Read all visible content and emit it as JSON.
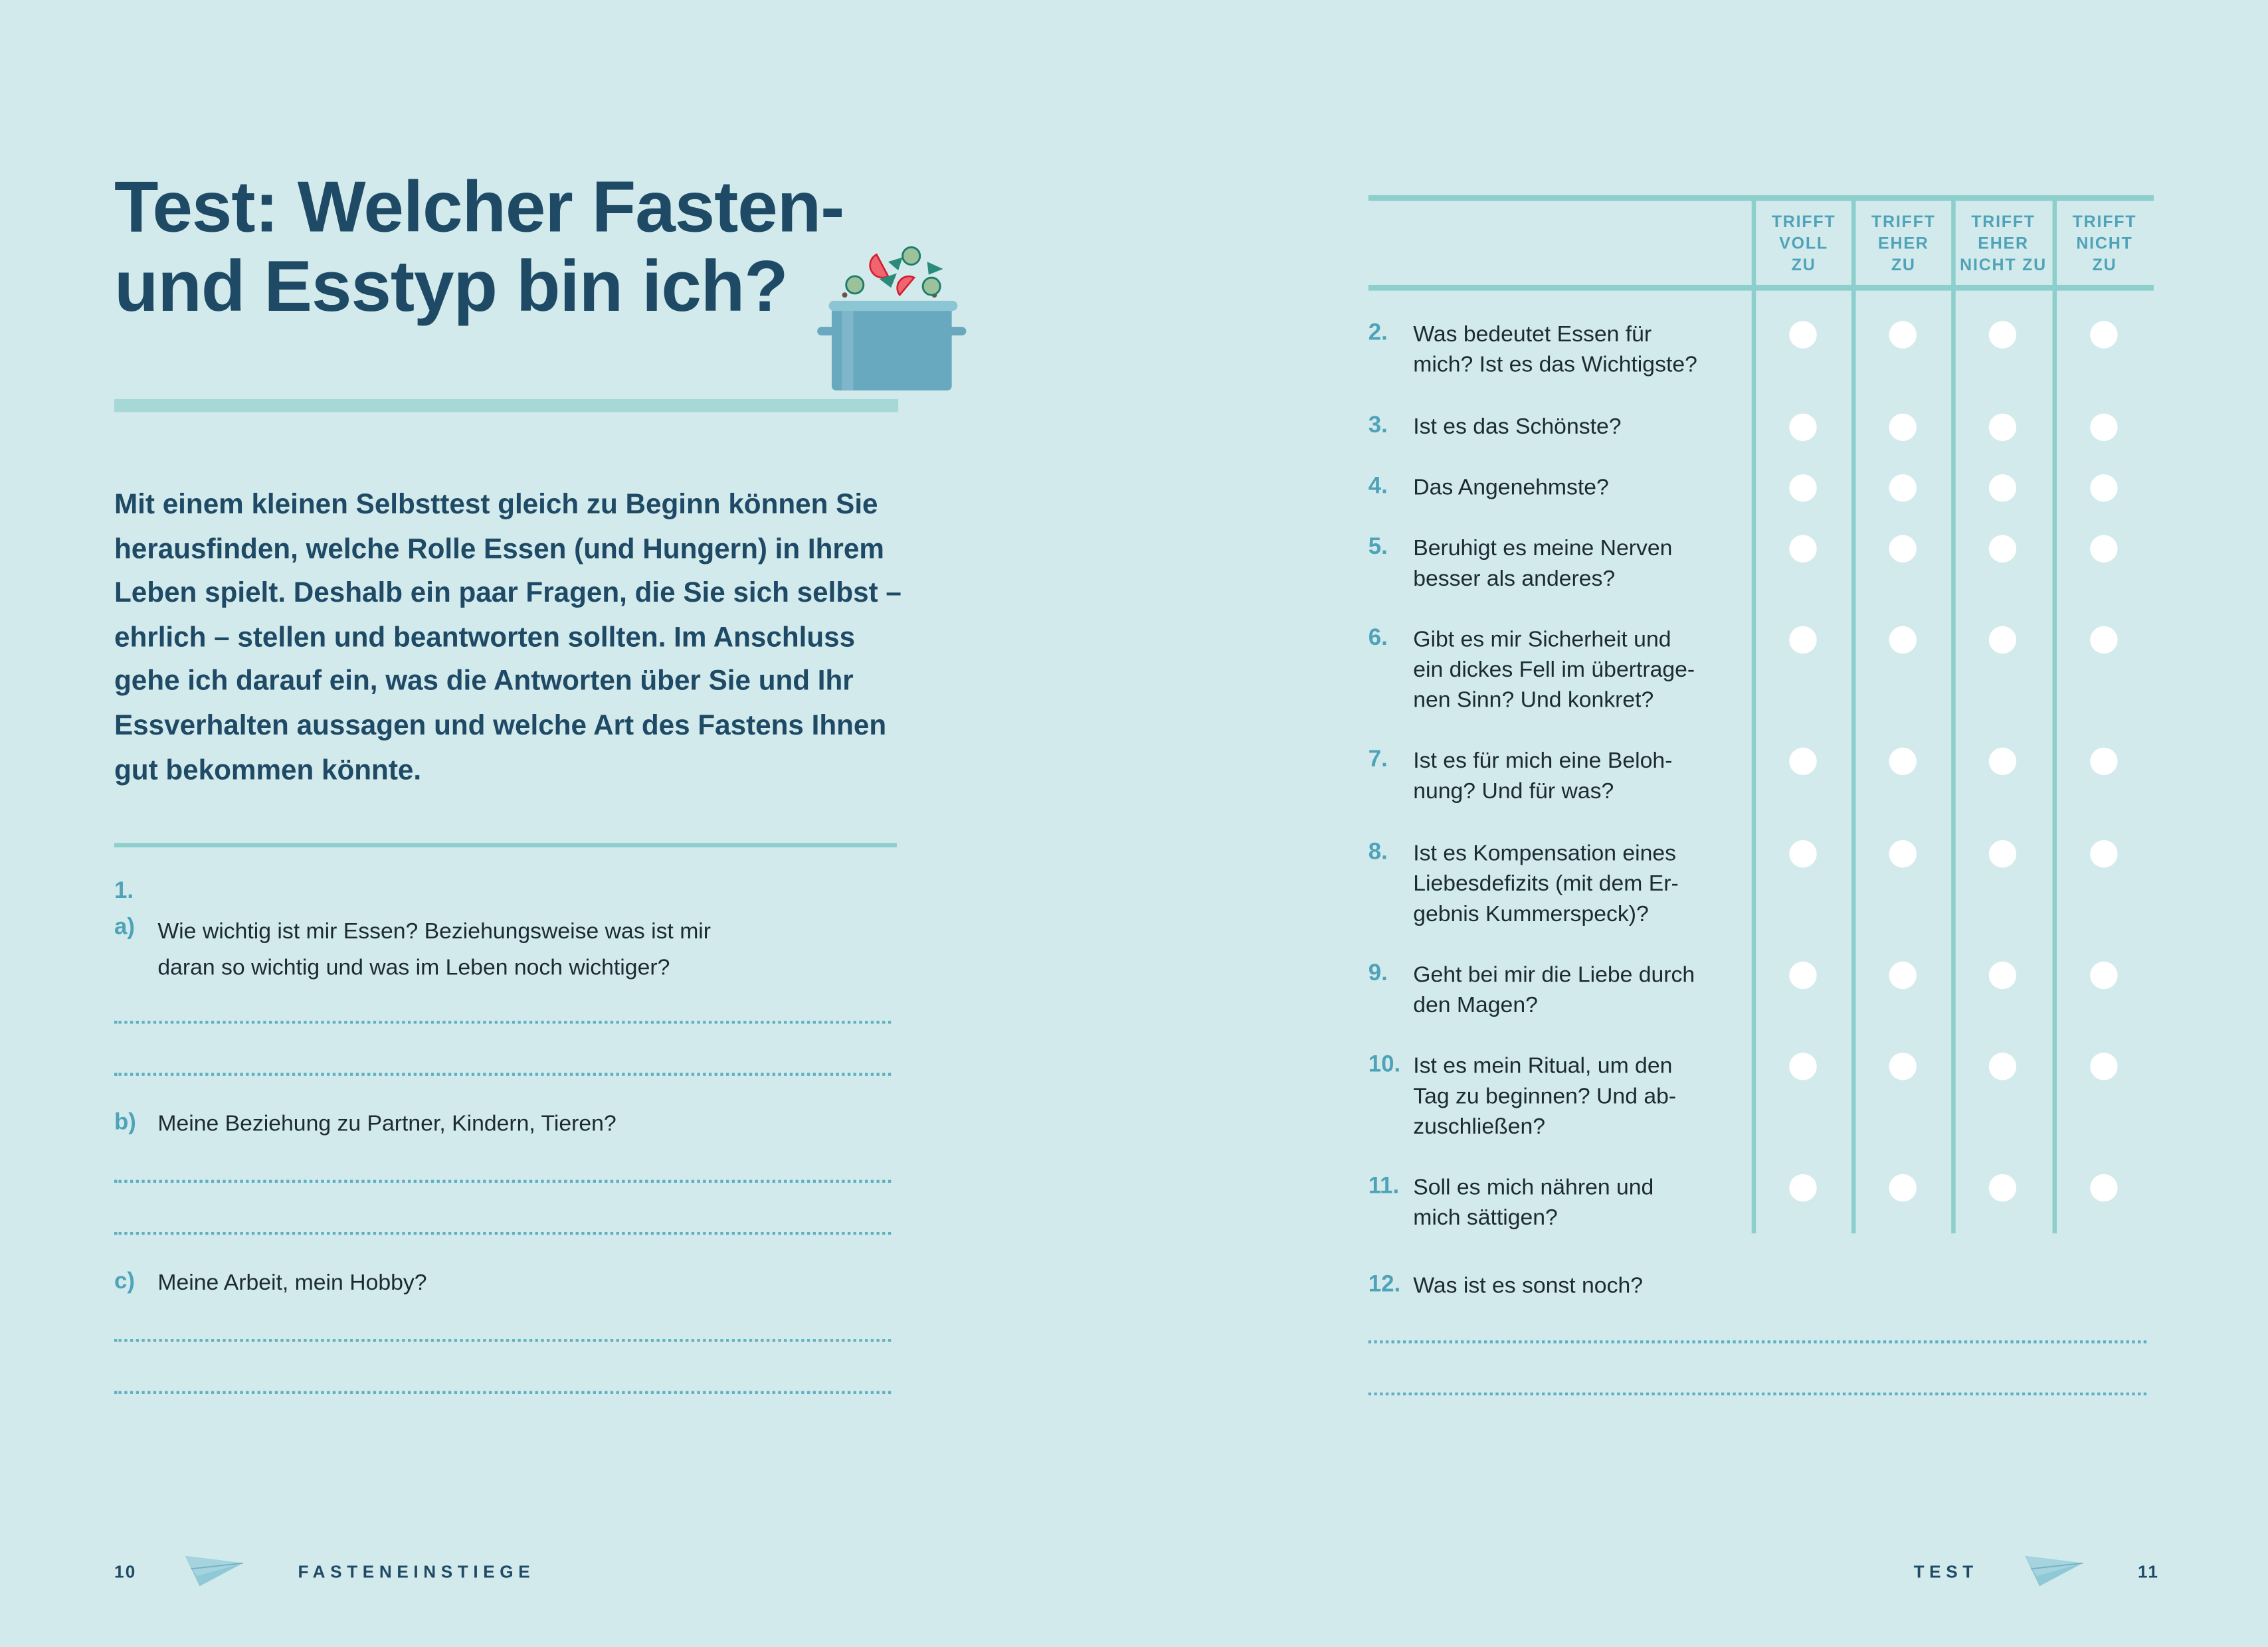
{
  "left_page": {
    "title_line1": "Test: Welcher Fasten-",
    "title_line2": "und Esstyp bin ich?",
    "intro": "Mit einem kleinen Selbsttest gleich zu Beginn können Sie herausfinden, welche Rolle Essen (und Hungern) in Ihrem Leben spielt. Deshalb ein paar Fragen, die Sie sich selbst – ehrlich – stellen und beantworten sollten. Im Anschluss gehe ich darauf ein, was die Antworten über Sie und Ihr Essverhalten aussagen und welche Art des Fastens Ihnen gut bekommen könnte.",
    "question_number": "1.",
    "subquestions": [
      {
        "label": "a)",
        "text_line1": "Wie wichtig ist mir Essen? Beziehungsweise was ist mir",
        "text_line2": "daran so wichtig und was im Leben noch wichtiger?"
      },
      {
        "label": "b)",
        "text_line1": "Meine Beziehung zu Partner, Kindern, Tieren?",
        "text_line2": ""
      },
      {
        "label": "c)",
        "text_line1": "Meine Arbeit, mein Hobby?",
        "text_line2": ""
      }
    ],
    "footer": {
      "page_number": "10",
      "section": "FASTENEINSTIEGE"
    }
  },
  "right_page": {
    "columns": [
      [
        "TRIFFT",
        "VOLL",
        "ZU"
      ],
      [
        "TRIFFT",
        "EHER",
        "ZU"
      ],
      [
        "TRIFFT",
        "EHER",
        "NICHT ZU"
      ],
      [
        "TRIFFT",
        "NICHT",
        "ZU"
      ]
    ],
    "questions": [
      {
        "number": "2.",
        "lines": [
          "Was bedeutet Essen für",
          "mich? Ist es das Wichtigste?"
        ]
      },
      {
        "number": "3.",
        "lines": [
          "Ist es das Schönste?"
        ]
      },
      {
        "number": "4.",
        "lines": [
          "Das Angenehmste?"
        ]
      },
      {
        "number": "5.",
        "lines": [
          "Beruhigt es meine Nerven",
          "besser als anderes?"
        ]
      },
      {
        "number": "6.",
        "lines": [
          "Gibt es mir Sicherheit und",
          "ein dickes Fell im übertrage-",
          "nen Sinn? Und konkret?"
        ]
      },
      {
        "number": "7.",
        "lines": [
          "Ist es für mich eine Beloh-",
          "nung? Und für was?"
        ]
      },
      {
        "number": "8.",
        "lines": [
          "Ist es Kompensation eines",
          "Liebesdefizits (mit dem Er-",
          "gebnis Kummerspeck)?"
        ]
      },
      {
        "number": "9.",
        "lines": [
          "Geht bei mir die Liebe durch",
          "den Magen?"
        ]
      },
      {
        "number": "10.",
        "lines": [
          "Ist es mein Ritual, um den",
          "Tag zu beginnen? Und ab-",
          "zuschließen?"
        ]
      },
      {
        "number": "11.",
        "lines": [
          "Soll es mich nähren und",
          "mich sättigen?"
        ]
      }
    ],
    "final_question": {
      "number": "12.",
      "text": "Was ist es sonst noch?"
    },
    "footer": {
      "page_number": "11",
      "section": "TEST"
    }
  },
  "colors": {
    "background": "#d3eaec",
    "navy": "#1e4a66",
    "accent": "#8ccfcc",
    "number": "#4fa3b8"
  },
  "icons": [
    "cooking-pot-illustration",
    "paper-plane-icon"
  ]
}
